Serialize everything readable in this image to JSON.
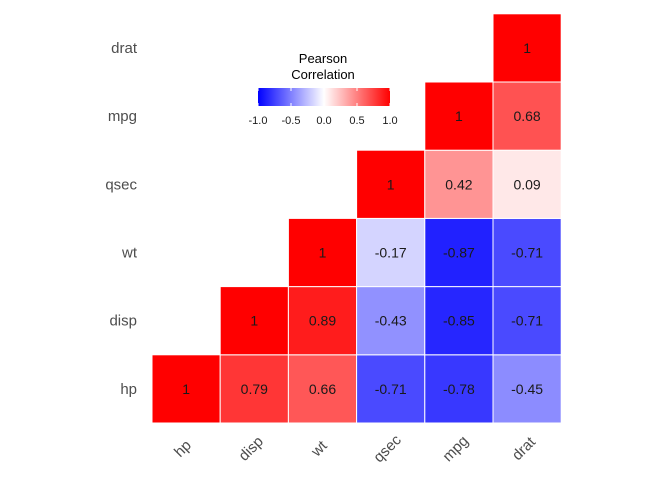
{
  "chart_data": {
    "type": "heatmap",
    "title": "",
    "xlabel": "",
    "ylabel": "",
    "x_categories": [
      "hp",
      "disp",
      "wt",
      "qsec",
      "mpg",
      "drat"
    ],
    "y_categories": [
      "hp",
      "disp",
      "wt",
      "qsec",
      "mpg",
      "drat"
    ],
    "cells": [
      {
        "x": "hp",
        "y": "hp",
        "value": 1,
        "label": "1"
      },
      {
        "x": "disp",
        "y": "hp",
        "value": 0.79,
        "label": "0.79"
      },
      {
        "x": "wt",
        "y": "hp",
        "value": 0.66,
        "label": "0.66"
      },
      {
        "x": "qsec",
        "y": "hp",
        "value": -0.71,
        "label": "-0.71"
      },
      {
        "x": "mpg",
        "y": "hp",
        "value": -0.78,
        "label": "-0.78"
      },
      {
        "x": "drat",
        "y": "hp",
        "value": -0.45,
        "label": "-0.45"
      },
      {
        "x": "disp",
        "y": "disp",
        "value": 1,
        "label": "1"
      },
      {
        "x": "wt",
        "y": "disp",
        "value": 0.89,
        "label": "0.89"
      },
      {
        "x": "qsec",
        "y": "disp",
        "value": -0.43,
        "label": "-0.43"
      },
      {
        "x": "mpg",
        "y": "disp",
        "value": -0.85,
        "label": "-0.85"
      },
      {
        "x": "drat",
        "y": "disp",
        "value": -0.71,
        "label": "-0.71"
      },
      {
        "x": "wt",
        "y": "wt",
        "value": 1,
        "label": "1"
      },
      {
        "x": "qsec",
        "y": "wt",
        "value": -0.17,
        "label": "-0.17"
      },
      {
        "x": "mpg",
        "y": "wt",
        "value": -0.87,
        "label": "-0.87"
      },
      {
        "x": "drat",
        "y": "wt",
        "value": -0.71,
        "label": "-0.71"
      },
      {
        "x": "qsec",
        "y": "qsec",
        "value": 1,
        "label": "1"
      },
      {
        "x": "mpg",
        "y": "qsec",
        "value": 0.42,
        "label": "0.42"
      },
      {
        "x": "drat",
        "y": "qsec",
        "value": 0.09,
        "label": "0.09"
      },
      {
        "x": "mpg",
        "y": "mpg",
        "value": 1,
        "label": "1"
      },
      {
        "x": "drat",
        "y": "mpg",
        "value": 0.68,
        "label": "0.68"
      },
      {
        "x": "drat",
        "y": "drat",
        "value": 1,
        "label": "1"
      }
    ],
    "legend": {
      "title_lines": [
        "Pearson",
        "Correlation"
      ],
      "range": [
        -1,
        1
      ],
      "ticks": [
        -1,
        -0.5,
        0,
        0.5,
        1
      ],
      "tick_labels": [
        "-1.0",
        "-0.5",
        "0.0",
        "0.5",
        "1.0"
      ],
      "placement": "top-center"
    },
    "colors": {
      "low": "#0000ff",
      "mid": "#ffffff",
      "high": "#ff0000"
    },
    "grid": false
  }
}
